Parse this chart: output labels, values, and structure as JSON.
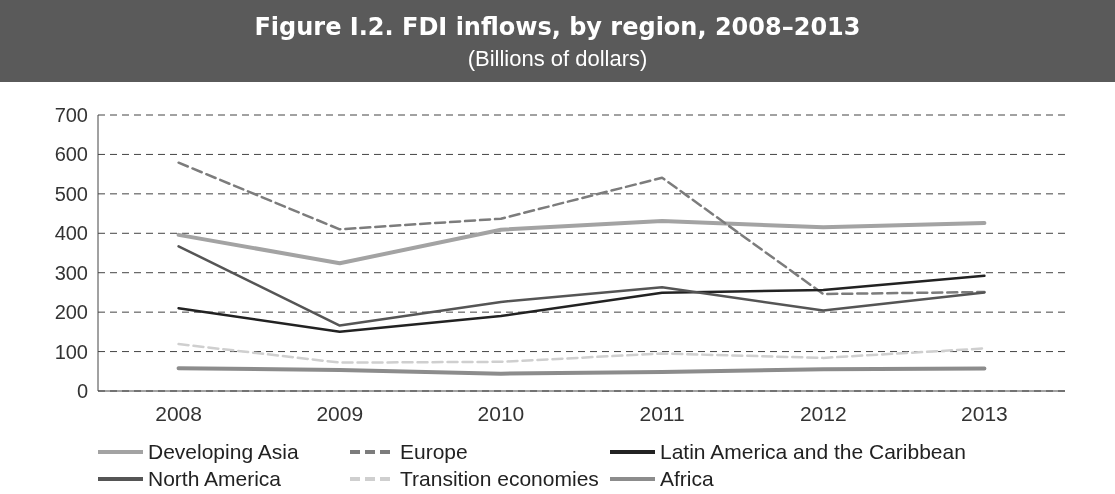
{
  "chart_data": {
    "type": "line",
    "title": "Figure I.2. FDI inflows, by region, 2008–2013",
    "subtitle": "(Billions of dollars)",
    "categories": [
      "2008",
      "2009",
      "2010",
      "2011",
      "2012",
      "2013"
    ],
    "ylim": [
      0,
      700
    ],
    "yticks": [
      0,
      100,
      200,
      300,
      400,
      500,
      600,
      700
    ],
    "grid": "y",
    "legend": "bottom",
    "marker": "none",
    "series": [
      {
        "name": "Developing Asia",
        "color": "#a3a3a3",
        "values": [
          396,
          324,
          409,
          431,
          415,
          426
        ],
        "line_style": "solid"
      },
      {
        "name": "Europe",
        "color": "#7c7c7c",
        "values": [
          579,
          410,
          437,
          541,
          246,
          251
        ],
        "line_style": "dashed"
      },
      {
        "name": "Latin America and the Caribbean",
        "color": "#222222",
        "values": [
          210,
          150,
          190,
          249,
          256,
          292
        ],
        "line_style": "solid"
      },
      {
        "name": "North America",
        "color": "#555555",
        "values": [
          367,
          166,
          226,
          263,
          204,
          250
        ],
        "line_style": "solid"
      },
      {
        "name": "Transition economies",
        "color": "#cfcfcf",
        "values": [
          119,
          72,
          74,
          95,
          84,
          108
        ],
        "line_style": "dashed"
      },
      {
        "name": "Africa",
        "color": "#8c8c8c",
        "values": [
          58,
          53,
          44,
          48,
          55,
          57
        ],
        "line_style": "solid"
      }
    ]
  }
}
